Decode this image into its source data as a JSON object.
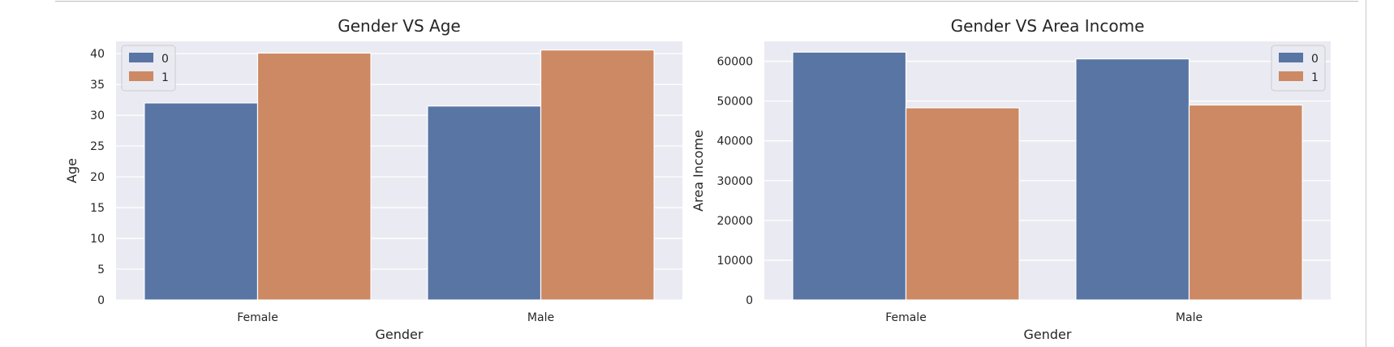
{
  "chart_data": [
    {
      "type": "bar",
      "title": "Gender VS Age",
      "xlabel": "Gender",
      "ylabel": "Age",
      "categories": [
        "Female",
        "Male"
      ],
      "series": [
        {
          "name": "0",
          "values": [
            32.0,
            31.5
          ],
          "color": "#5875a4"
        },
        {
          "name": "1",
          "values": [
            40.1,
            40.6
          ],
          "color": "#cc8963"
        }
      ],
      "yticks": [
        "0",
        "5",
        "10",
        "15",
        "20",
        "25",
        "30",
        "35",
        "40"
      ],
      "ylim": [
        0,
        42
      ],
      "grid": true,
      "legend_position": "top-left"
    },
    {
      "type": "bar",
      "title": "Gender VS Area Income",
      "xlabel": "Gender",
      "ylabel": "Area Income",
      "categories": [
        "Female",
        "Male"
      ],
      "series": [
        {
          "name": "0",
          "values": [
            62300,
            60600
          ],
          "color": "#5875a4"
        },
        {
          "name": "1",
          "values": [
            48300,
            49000
          ],
          "color": "#cc8963"
        }
      ],
      "yticks": [
        "0",
        "10000",
        "20000",
        "30000",
        "40000",
        "50000",
        "60000"
      ],
      "ylim": [
        0,
        65000
      ],
      "grid": true,
      "legend_position": "top-right"
    }
  ],
  "colors": {
    "plot_background": "#eaeaf2",
    "grid": "#ffffff",
    "series_0": "#5875a4",
    "series_1": "#cc8963"
  }
}
